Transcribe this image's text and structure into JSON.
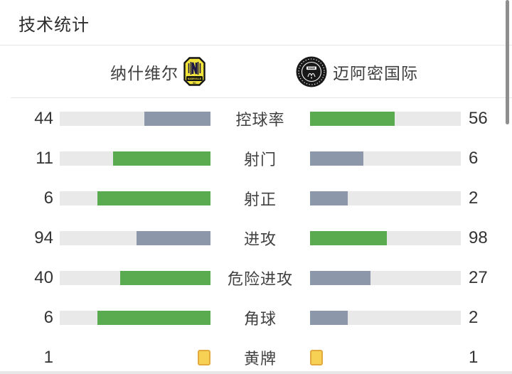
{
  "title": "技术统计",
  "teams": {
    "home": {
      "name": "纳什维尔",
      "logo": "nashville-sc-crest"
    },
    "away": {
      "name": "迈阿密国际",
      "logo": "inter-miami-crest"
    }
  },
  "colors": {
    "win_bar": "#5aab4f",
    "lose_bar": "#8c97a9",
    "track": "#e9e9e9",
    "card_fill": "#f6d153",
    "card_border": "#e2a93c",
    "divider": "#e5e5e5",
    "scrollbar": "#8e8e8e"
  },
  "stats": [
    {
      "type": "bar",
      "label": "控球率",
      "home": 44,
      "away": 56,
      "home_fill": 44,
      "away_fill": 56,
      "home_win": false
    },
    {
      "type": "bar",
      "label": "射门",
      "home": 11,
      "away": 6,
      "home_fill": 64.7,
      "away_fill": 35.3,
      "home_win": true
    },
    {
      "type": "bar",
      "label": "射正",
      "home": 6,
      "away": 2,
      "home_fill": 75,
      "away_fill": 25,
      "home_win": true
    },
    {
      "type": "bar",
      "label": "进攻",
      "home": 94,
      "away": 98,
      "home_fill": 49,
      "away_fill": 51,
      "home_win": false
    },
    {
      "type": "bar",
      "label": "危险进攻",
      "home": 40,
      "away": 27,
      "home_fill": 59.7,
      "away_fill": 40.3,
      "home_win": true
    },
    {
      "type": "bar",
      "label": "角球",
      "home": 6,
      "away": 2,
      "home_fill": 75,
      "away_fill": 25,
      "home_win": true
    },
    {
      "type": "cards",
      "label": "黄牌",
      "home": 1,
      "away": 1
    }
  ]
}
